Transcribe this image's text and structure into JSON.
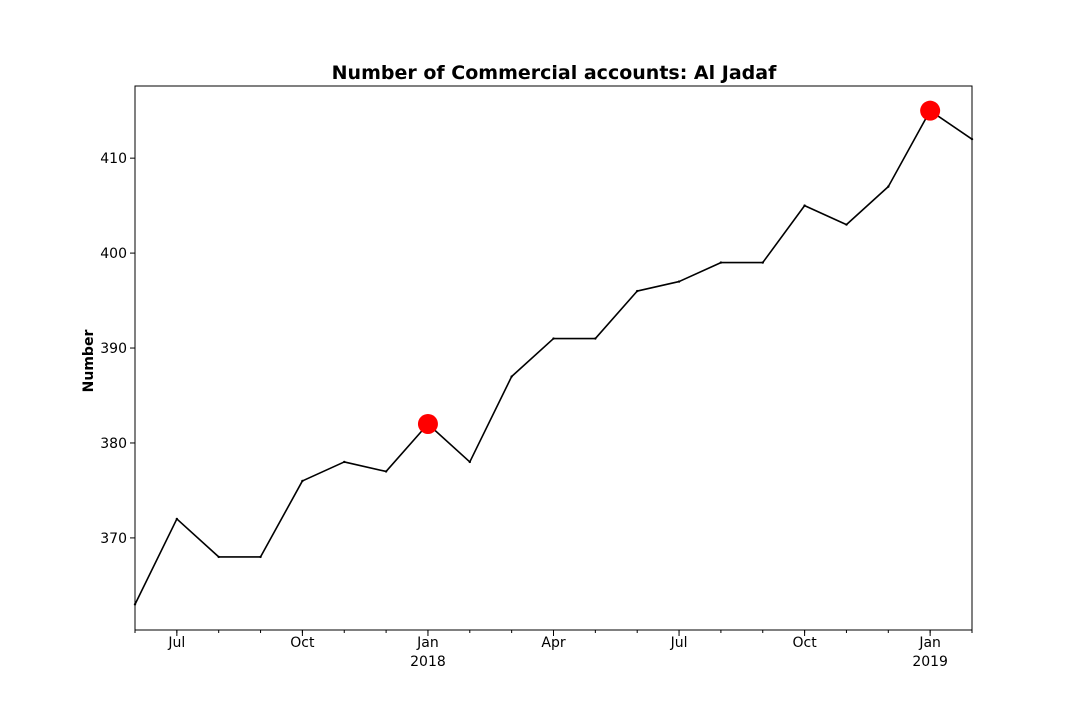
{
  "chart_data": {
    "type": "line",
    "title": "Number of Commercial accounts: Al Jadaf",
    "xlabel": "",
    "ylabel": "Number",
    "x": [
      "2017-06",
      "2017-07",
      "2017-08",
      "2017-09",
      "2017-10",
      "2017-11",
      "2017-12",
      "2018-01",
      "2018-02",
      "2018-03",
      "2018-04",
      "2018-05",
      "2018-06",
      "2018-07",
      "2018-08",
      "2018-09",
      "2018-10",
      "2018-11",
      "2018-12",
      "2019-01",
      "2019-02"
    ],
    "series": [
      {
        "values": [
          363,
          372,
          368,
          368,
          376,
          378,
          377,
          382,
          378,
          387,
          391,
          391,
          396,
          397,
          399,
          399,
          405,
          403,
          407,
          415,
          412
        ],
        "color": "#000000"
      }
    ],
    "highlights": [
      {
        "x": "2018-01",
        "y": 382,
        "color": "#ff0000"
      },
      {
        "x": "2019-01",
        "y": 415,
        "color": "#ff0000"
      }
    ],
    "ylim": [
      360.3,
      417.6
    ],
    "xlim": [
      "2017-06",
      "2019-02"
    ],
    "y_ticks": [
      370,
      380,
      390,
      400,
      410
    ],
    "x_major_ticks": [
      {
        "x": "2017-07",
        "label": "Jul",
        "sublabel": ""
      },
      {
        "x": "2017-10",
        "label": "Oct",
        "sublabel": ""
      },
      {
        "x": "2018-01",
        "label": "Jan",
        "sublabel": "2018"
      },
      {
        "x": "2018-04",
        "label": "Apr",
        "sublabel": ""
      },
      {
        "x": "2018-07",
        "label": "Jul",
        "sublabel": ""
      },
      {
        "x": "2018-10",
        "label": "Oct",
        "sublabel": ""
      },
      {
        "x": "2019-01",
        "label": "Jan",
        "sublabel": "2019"
      }
    ],
    "grid": false,
    "legend": false
  }
}
